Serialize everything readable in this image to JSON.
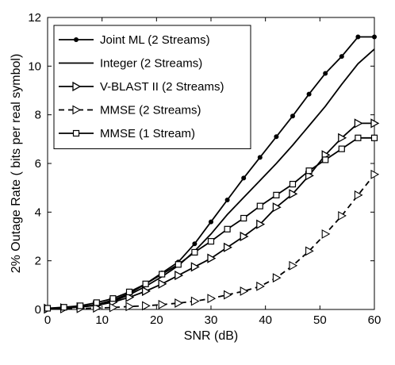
{
  "chart_data": {
    "type": "line",
    "title": "",
    "xlabel": "SNR (dB)",
    "ylabel": "2% Outage Rate ( bits per real symbol)",
    "xlim": [
      0,
      60
    ],
    "ylim": [
      0,
      12
    ],
    "xticks": [
      0,
      10,
      20,
      30,
      40,
      50,
      60
    ],
    "yticks": [
      0,
      2,
      4,
      6,
      8,
      10,
      12
    ],
    "grid": false,
    "legend_position": "top-left",
    "series": [
      {
        "name": "Joint ML (2 Streams)",
        "line_style": "solid",
        "marker": "dot",
        "x": [
          0,
          3,
          6,
          9,
          12,
          15,
          18,
          21,
          24,
          27,
          30,
          33,
          36,
          39,
          42,
          45,
          48,
          51,
          54,
          57,
          60
        ],
        "y": [
          0.05,
          0.07,
          0.11,
          0.2,
          0.38,
          0.66,
          1.05,
          1.5,
          1.95,
          2.7,
          3.6,
          4.5,
          5.4,
          6.25,
          7.1,
          7.95,
          8.85,
          9.7,
          10.4,
          11.2,
          11.2
        ]
      },
      {
        "name": "Integer (2 Streams)",
        "line_style": "solid",
        "marker": "none",
        "x": [
          0,
          3,
          6,
          9,
          12,
          15,
          18,
          21,
          24,
          27,
          30,
          33,
          36,
          39,
          42,
          45,
          48,
          51,
          54,
          57,
          60
        ],
        "y": [
          0.04,
          0.06,
          0.1,
          0.18,
          0.34,
          0.6,
          0.95,
          1.35,
          1.8,
          2.4,
          3.1,
          3.9,
          4.6,
          5.3,
          6.0,
          6.75,
          7.55,
          8.35,
          9.25,
          10.1,
          10.7
        ]
      },
      {
        "name": "V-BLAST II (2 Streams)",
        "line_style": "solid",
        "marker": "triangle-right",
        "x": [
          0,
          3,
          6,
          9,
          12,
          15,
          18,
          21,
          24,
          27,
          30,
          33,
          36,
          39,
          42,
          45,
          48,
          51,
          54,
          57,
          60
        ],
        "y": [
          0.04,
          0.06,
          0.1,
          0.17,
          0.3,
          0.5,
          0.75,
          1.05,
          1.4,
          1.75,
          2.1,
          2.55,
          3.0,
          3.5,
          4.2,
          4.75,
          5.5,
          6.35,
          7.05,
          7.65,
          7.65
        ]
      },
      {
        "name": "MMSE (2 Streams)",
        "line_style": "dashed",
        "marker": "triangle-right-open",
        "x": [
          0,
          3,
          6,
          9,
          12,
          15,
          18,
          21,
          24,
          27,
          30,
          33,
          36,
          39,
          42,
          45,
          48,
          51,
          54,
          57,
          60
        ],
        "y": [
          0.02,
          0.03,
          0.04,
          0.06,
          0.08,
          0.12,
          0.15,
          0.2,
          0.26,
          0.34,
          0.45,
          0.6,
          0.75,
          0.95,
          1.3,
          1.8,
          2.4,
          3.1,
          3.85,
          4.7,
          5.55
        ]
      },
      {
        "name": "MMSE (1 Stream)",
        "line_style": "solid",
        "marker": "square",
        "x": [
          0,
          3,
          6,
          9,
          12,
          15,
          18,
          21,
          24,
          27,
          30,
          33,
          36,
          39,
          42,
          45,
          48,
          51,
          54,
          57,
          60
        ],
        "y": [
          0.05,
          0.09,
          0.15,
          0.28,
          0.45,
          0.72,
          1.05,
          1.45,
          1.85,
          2.35,
          2.8,
          3.3,
          3.75,
          4.25,
          4.7,
          5.15,
          5.7,
          6.15,
          6.6,
          7.05,
          7.05
        ]
      }
    ]
  }
}
